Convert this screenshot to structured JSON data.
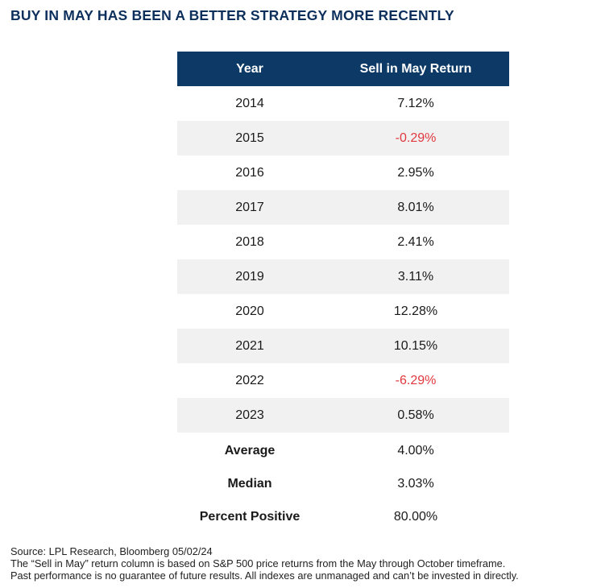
{
  "title": "BUY IN MAY HAS BEEN A BETTER STRATEGY MORE RECENTLY",
  "colors": {
    "header_bg": "#0c3966",
    "title": "#0d2f5c",
    "negative": "#e0383e",
    "stripe": "#f1f1f2"
  },
  "chart_data": {
    "type": "table",
    "title": "BUY IN MAY HAS BEEN A BETTER STRATEGY MORE RECENTLY",
    "columns": [
      "Year",
      "Sell in May Return"
    ],
    "rows": [
      {
        "year": "2014",
        "return": "7.12%",
        "value": 7.12,
        "negative": false
      },
      {
        "year": "2015",
        "return": "-0.29%",
        "value": -0.29,
        "negative": true
      },
      {
        "year": "2016",
        "return": "2.95%",
        "value": 2.95,
        "negative": false
      },
      {
        "year": "2017",
        "return": "8.01%",
        "value": 8.01,
        "negative": false
      },
      {
        "year": "2018",
        "return": "2.41%",
        "value": 2.41,
        "negative": false
      },
      {
        "year": "2019",
        "return": "3.11%",
        "value": 3.11,
        "negative": false
      },
      {
        "year": "2020",
        "return": "12.28%",
        "value": 12.28,
        "negative": false
      },
      {
        "year": "2021",
        "return": "10.15%",
        "value": 10.15,
        "negative": false
      },
      {
        "year": "2022",
        "return": "-6.29%",
        "value": -6.29,
        "negative": true
      },
      {
        "year": "2023",
        "return": "0.58%",
        "value": 0.58,
        "negative": false
      }
    ],
    "summary": [
      {
        "label": "Average",
        "value": "4.00%"
      },
      {
        "label": "Median",
        "value": "3.03%"
      },
      {
        "label": "Percent Positive",
        "value": "80.00%"
      }
    ]
  },
  "notes": {
    "source": "Source: LPL Research, Bloomberg 05/02/24",
    "line1": "The “Sell in May” return column is based on S&P 500 price returns from the May through October timeframe.",
    "line2": "Past performance is no guarantee of future results. All indexes are unmanaged and can’t be invested in directly."
  }
}
